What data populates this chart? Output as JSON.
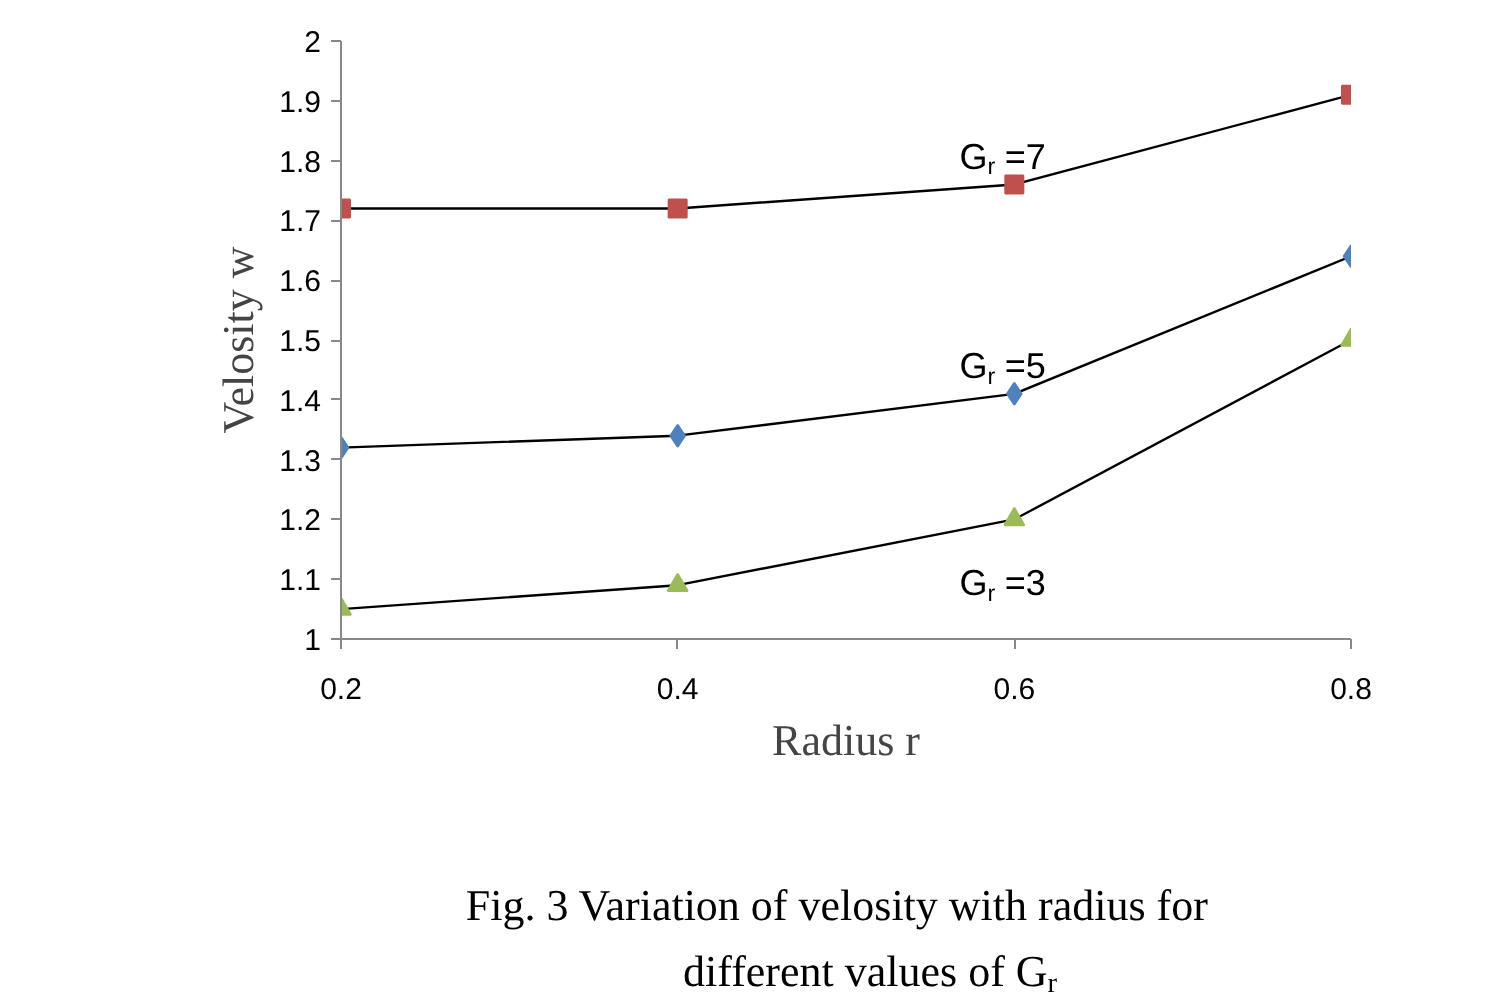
{
  "chart_data": {
    "type": "line",
    "title": "Fig. 3 Variation of velosity with radius for different values of G$_{r}$",
    "xlabel": "Radius r",
    "ylabel": "Velosity w",
    "x": [
      0.2,
      0.4,
      0.6,
      0.8
    ],
    "xlim": [
      0.2,
      0.8
    ],
    "xticks": [
      0.2,
      0.4,
      0.6,
      0.8
    ],
    "ylim": [
      1,
      2
    ],
    "yticks": [
      1,
      1.1,
      1.2,
      1.3,
      1.4,
      1.5,
      1.6,
      1.7,
      1.8,
      1.9,
      2
    ],
    "series": [
      {
        "name": "G$_{r}$ =7",
        "color": "#c0504d",
        "marker": "square",
        "values": [
          1.72,
          1.72,
          1.76,
          1.91
        ]
      },
      {
        "name": "G$_{r}$ =5",
        "color": "#4f81bd",
        "marker": "diamond",
        "values": [
          1.32,
          1.34,
          1.41,
          1.64
        ]
      },
      {
        "name": "G$_{r}$ =3",
        "color": "#9bbb59",
        "marker": "triangle",
        "values": [
          1.05,
          1.09,
          1.2,
          1.5
        ]
      }
    ],
    "grid": false
  }
}
